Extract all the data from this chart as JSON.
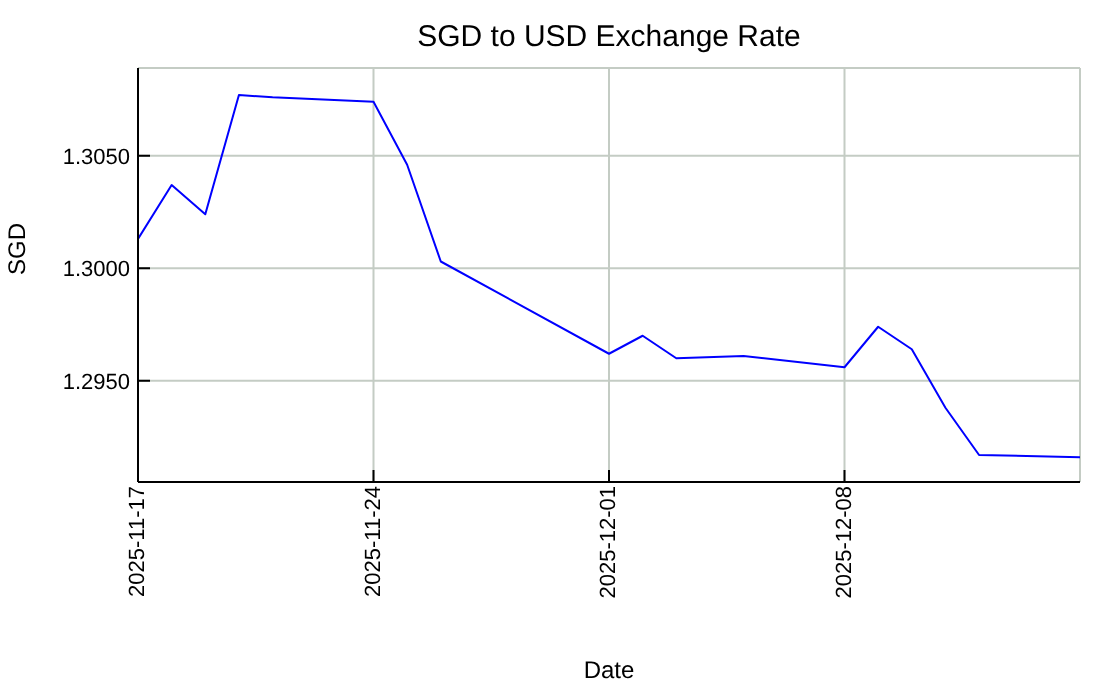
{
  "chart_data": {
    "type": "line",
    "title": "SGD to USD Exchange Rate",
    "xlabel": "Date",
    "ylabel": "SGD",
    "x": [
      "2025-11-17",
      "2025-11-18",
      "2025-11-19",
      "2025-11-20",
      "2025-11-21",
      "2025-11-24",
      "2025-11-25",
      "2025-11-26",
      "2025-12-01",
      "2025-12-02",
      "2025-12-03",
      "2025-12-05",
      "2025-12-08",
      "2025-12-09",
      "2025-12-10",
      "2025-12-11",
      "2025-12-12",
      "2025-12-15"
    ],
    "series": [
      {
        "color": "#0000ff",
        "values": [
          1.3013,
          1.3037,
          1.3024,
          1.3077,
          1.3076,
          1.3074,
          1.3046,
          1.3003,
          1.2962,
          1.297,
          1.296,
          1.2961,
          1.2956,
          1.2974,
          1.2964,
          1.2938,
          1.2917,
          1.2916
        ]
      }
    ],
    "xlim": [
      "2025-11-17",
      "2025-12-15"
    ],
    "xticks": [
      "2025-11-17",
      "2025-11-24",
      "2025-12-01",
      "2025-12-08"
    ],
    "ylim": [
      1.2905,
      1.3089
    ],
    "yticks": [
      {
        "value": 1.295,
        "label": "1.2950"
      },
      {
        "value": 1.3,
        "label": "1.3000"
      },
      {
        "value": 1.305,
        "label": "1.3050"
      }
    ],
    "grid": true,
    "legend": false,
    "marker": "none",
    "line_style": "solid"
  }
}
